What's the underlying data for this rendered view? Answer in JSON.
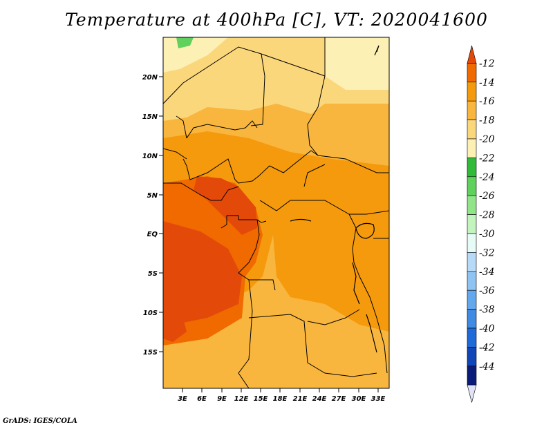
{
  "title": "Temperature at 400hPa [C], VT: 2020041600",
  "credit": "GrADS: IGES/COLA",
  "map": {
    "lat_labels": [
      "20N",
      "15N",
      "10N",
      "5N",
      "EQ",
      "5S",
      "10S",
      "15S"
    ],
    "lon_labels": [
      "3E",
      "6E",
      "9E",
      "12E",
      "15E",
      "18E",
      "21E",
      "24E",
      "27E",
      "30E",
      "33E"
    ]
  },
  "colorbar": {
    "labels": [
      "-12",
      "-14",
      "-16",
      "-18",
      "-20",
      "-22",
      "-24",
      "-26",
      "-28",
      "-30",
      "-32",
      "-34",
      "-36",
      "-38",
      "-40",
      "-42",
      "-44"
    ],
    "colors": [
      "#e34a0a",
      "#f06a00",
      "#f59a0c",
      "#f8b63e",
      "#fbd77c",
      "#fdf0b4",
      "#31b93a",
      "#5fd15c",
      "#92e488",
      "#c3f4bd",
      "#e6fbf6",
      "#b6daf7",
      "#8ec3f3",
      "#63a8ec",
      "#3f8ae3",
      "#1d6ad8",
      "#1046b8",
      "#0a1c7a",
      "#e2e2f6"
    ]
  },
  "colors": {
    "land_outline": "#000000",
    "sea_warm": "#ef6b00",
    "hot_core": "#e34a0a"
  }
}
